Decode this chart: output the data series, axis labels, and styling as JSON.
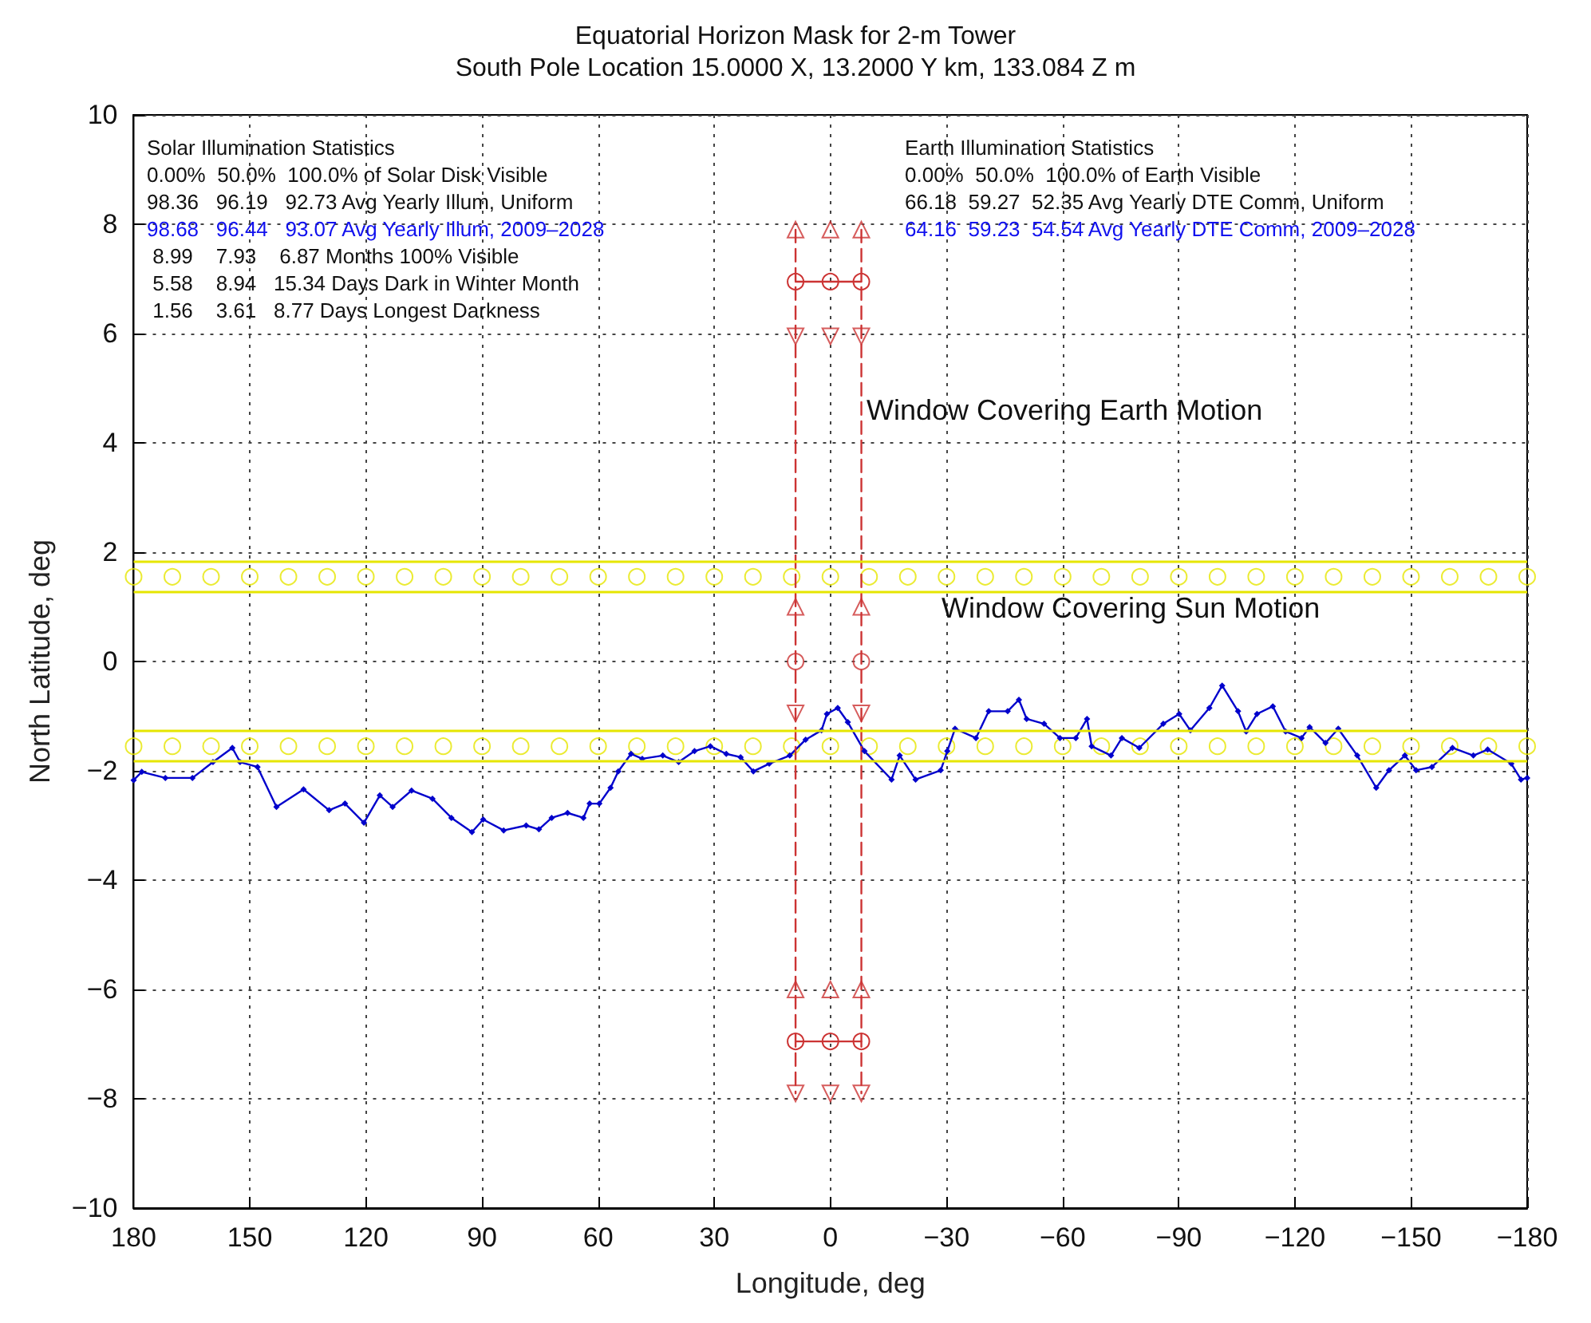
{
  "chart_data": {
    "type": "line",
    "title": "Equatorial Horizon Mask for 2-m Tower",
    "subtitle": "South Pole Location 15.0000 X, 13.2000 Y km, 133.084 Z m",
    "xlabel": "Longitude, deg",
    "ylabel": "North Latitude, deg",
    "xlim": [
      180,
      -180
    ],
    "xticks": [
      180,
      150,
      120,
      90,
      60,
      30,
      0,
      -30,
      -60,
      -90,
      -120,
      -150,
      -180
    ],
    "ylim": [
      -10,
      10
    ],
    "yticks": [
      -10,
      -8,
      -6,
      -4,
      -2,
      0,
      2,
      4,
      6,
      8,
      10
    ],
    "grid": true,
    "series": [
      {
        "type": "line",
        "color": "#0000cc",
        "marker": "diamond",
        "x": [
          180,
          177.9,
          171.8,
          164.8,
          159.5,
          154.5,
          152.5,
          148.0,
          143.1,
          136.1,
          129.5,
          125.4,
          120.5,
          116.4,
          113.1,
          108.2,
          102.8,
          97.9,
          92.6,
          89.7,
          84.4,
          78.6,
          75.3,
          72.0,
          67.9,
          63.8,
          62.2,
          59.7,
          56.8,
          54.8,
          51.5,
          48.6,
          43.3,
          39.2,
          35.1,
          31.0,
          26.9,
          23.2,
          19.9,
          15.8,
          10.5,
          6.4,
          2.3,
          0.9,
          -1.9,
          -4.5,
          -8.8,
          -15.8,
          -17.9,
          -22.0,
          -28.5,
          -30.2,
          -32.2,
          -37.6,
          -40.9,
          -45.8,
          -48.7,
          -50.7,
          -55.2,
          -59.3,
          -63.4,
          -66.3,
          -67.5,
          -72.5,
          -75.3,
          -79.8,
          -86.0,
          -90.1,
          -93.0,
          -97.9,
          -101.2,
          -105.3,
          -107.4,
          -110.2,
          -114.3,
          -117.6,
          -121.7,
          -123.8,
          -127.9,
          -131.2,
          -136.1,
          -141.0,
          -144.3,
          -148.4,
          -151.3,
          -155.4,
          -160.7,
          -166.1,
          -169.8,
          -175.9,
          -178.4,
          -180
        ],
        "values": [
          -2.17,
          -2.02,
          -2.13,
          -2.13,
          -1.84,
          -1.58,
          -1.84,
          -1.93,
          -2.66,
          -2.34,
          -2.72,
          -2.6,
          -2.95,
          -2.45,
          -2.66,
          -2.36,
          -2.51,
          -2.86,
          -3.12,
          -2.89,
          -3.09,
          -3.0,
          -3.07,
          -2.86,
          -2.77,
          -2.86,
          -2.6,
          -2.6,
          -2.31,
          -2.01,
          -1.69,
          -1.78,
          -1.72,
          -1.84,
          -1.64,
          -1.55,
          -1.69,
          -1.75,
          -2.01,
          -1.87,
          -1.72,
          -1.43,
          -1.26,
          -0.96,
          -0.85,
          -1.11,
          -1.64,
          -2.16,
          -1.72,
          -2.16,
          -1.99,
          -1.64,
          -1.23,
          -1.4,
          -0.91,
          -0.91,
          -0.7,
          -1.05,
          -1.14,
          -1.4,
          -1.4,
          -1.05,
          -1.55,
          -1.72,
          -1.4,
          -1.58,
          -1.14,
          -0.96,
          -1.26,
          -0.85,
          -0.44,
          -0.91,
          -1.28,
          -0.96,
          -0.82,
          -1.28,
          -1.4,
          -1.2,
          -1.49,
          -1.23,
          -1.72,
          -2.31,
          -1.99,
          -1.72,
          -1.99,
          -1.93,
          -1.58,
          -1.72,
          -1.61,
          -1.87,
          -2.16,
          -2.13
        ]
      },
      {
        "type": "scatter",
        "color": "#e6e600",
        "marker": "circle",
        "x": [
          180,
          170,
          160,
          150,
          140,
          130,
          120,
          110,
          100,
          90,
          80,
          70,
          60,
          50,
          40,
          30,
          20,
          10,
          0,
          -10,
          -20,
          -30,
          -40,
          -50,
          -60,
          -70,
          -80,
          -90,
          -100,
          -110,
          -120,
          -130,
          -140,
          -150,
          -160,
          -170,
          -180
        ],
        "values": [
          1.55,
          1.55,
          1.55,
          1.55,
          1.55,
          1.55,
          1.55,
          1.55,
          1.55,
          1.55,
          1.55,
          1.55,
          1.55,
          1.55,
          1.55,
          1.55,
          1.55,
          1.55,
          1.55,
          1.55,
          1.55,
          1.55,
          1.55,
          1.55,
          1.55,
          1.55,
          1.55,
          1.55,
          1.55,
          1.55,
          1.55,
          1.55,
          1.55,
          1.55,
          1.55,
          1.55,
          1.55
        ]
      },
      {
        "type": "scatter",
        "color": "#e6e600",
        "marker": "circle",
        "x": [
          180,
          170,
          160,
          150,
          140,
          130,
          120,
          110,
          100,
          90,
          80,
          70,
          60,
          50,
          40,
          30,
          20,
          10,
          0,
          -10,
          -20,
          -30,
          -40,
          -50,
          -60,
          -70,
          -80,
          -90,
          -100,
          -110,
          -120,
          -130,
          -140,
          -150,
          -160,
          -170,
          -180
        ],
        "values": [
          -1.55,
          -1.55,
          -1.55,
          -1.55,
          -1.55,
          -1.55,
          -1.55,
          -1.55,
          -1.55,
          -1.55,
          -1.55,
          -1.55,
          -1.55,
          -1.55,
          -1.55,
          -1.55,
          -1.55,
          -1.55,
          -1.55,
          -1.55,
          -1.55,
          -1.55,
          -1.55,
          -1.55,
          -1.55,
          -1.55,
          -1.55,
          -1.55,
          -1.55,
          -1.55,
          -1.55,
          -1.55,
          -1.55,
          -1.55,
          -1.55,
          -1.55,
          -1.55
        ]
      },
      {
        "type": "line",
        "color": "#cc3333",
        "marker": "none",
        "line_style": "dashed",
        "x": [
          9,
          9
        ],
        "values": [
          7.9,
          -7.9
        ]
      },
      {
        "type": "line",
        "color": "#cc3333",
        "marker": "none",
        "line_style": "dashed",
        "x": [
          -8,
          -8
        ],
        "values": [
          7.9,
          -7.9
        ]
      },
      {
        "type": "line",
        "color": "#cc3333",
        "marker": "circle",
        "line_style": "solid",
        "x": [
          9,
          0,
          -8
        ],
        "values": [
          6.95,
          6.95,
          6.95
        ]
      },
      {
        "type": "line",
        "color": "#cc3333",
        "marker": "circle",
        "line_style": "solid",
        "x": [
          9,
          0,
          -8
        ],
        "values": [
          -6.95,
          -6.95,
          -6.95
        ]
      },
      {
        "type": "scatter",
        "color": "#cc3333",
        "marker": "circle",
        "x": [
          9,
          -8
        ],
        "values": [
          0,
          0
        ]
      },
      {
        "type": "scatter",
        "color": "#cc3333",
        "marker": "triangle",
        "x": [
          9,
          0,
          -8,
          9,
          -8,
          9,
          0,
          -8
        ],
        "values": [
          7.9,
          7.9,
          7.9,
          1.0,
          1.0,
          -6.0,
          -6.0,
          -6.0
        ]
      },
      {
        "type": "scatter",
        "color": "#cc3333",
        "marker": "triangle-down",
        "x": [
          9,
          0,
          -8,
          9,
          -8,
          9,
          0,
          -8
        ],
        "values": [
          5.95,
          5.95,
          5.95,
          -0.95,
          -0.95,
          -7.9,
          -7.9,
          -7.9
        ]
      }
    ],
    "ref_lines": [
      {
        "axis": "y",
        "value": 1.83,
        "color": "#e6e600"
      },
      {
        "axis": "y",
        "value": 1.27,
        "color": "#e6e600"
      },
      {
        "axis": "y",
        "value": -1.27,
        "color": "#e6e600"
      },
      {
        "axis": "y",
        "value": -1.83,
        "color": "#e6e600"
      }
    ],
    "annotations": [
      "Solar Illumination Statistics",
      "0.00%  50.0%  100.0% of Solar Disk Visible",
      "98.36   96.19   92.73 Avg Yearly Illum, Uniform",
      "98.68   96.44   93.07 Avg Yearly Illum, 2009–2028",
      " 8.99    7.93    6.87 Months 100% Visible",
      " 5.58    8.94   15.34 Days Dark in Winter Month",
      " 1.56    3.61   8.77 Days Longest Darkness",
      "Earth Illumination Statistics",
      "0.00%  50.0%  100.0% of Earth Visible",
      "66.18  59.27  52.35 Avg Yearly DTE Comm, Uniform",
      "64.16  59.23  54.54 Avg Yearly DTE Comm, 2009–2028",
      "Window Covering Earth Motion",
      "Window Covering Sun Motion"
    ]
  }
}
